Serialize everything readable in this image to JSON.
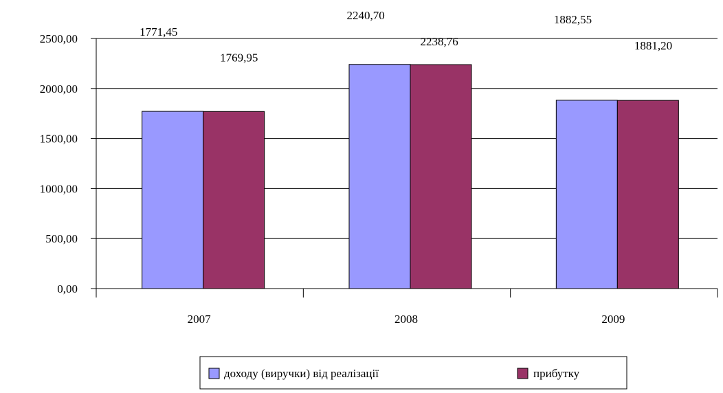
{
  "chart_data": {
    "type": "bar",
    "categories": [
      "2007",
      "2008",
      "2009"
    ],
    "series": [
      {
        "name": "доходу (виручки) від реалізації",
        "values": [
          1771.45,
          2240.7,
          1882.55
        ],
        "labels": [
          "1771,45",
          "2240,70",
          "1882,55"
        ],
        "color": "#9999FF"
      },
      {
        "name": "прибутку",
        "values": [
          1769.95,
          2238.76,
          1881.2
        ],
        "labels": [
          "1769,95",
          "2238,76",
          "1881,20"
        ],
        "color": "#993366"
      }
    ],
    "yticks": [
      "0,00",
      "500,00",
      "1000,00",
      "1500,00",
      "2000,00",
      "2500,00"
    ],
    "ytick_values": [
      0,
      500,
      1000,
      1500,
      2000,
      2500
    ],
    "ylim": [
      0,
      2500
    ],
    "grid": true,
    "legend_position": "bottom"
  }
}
